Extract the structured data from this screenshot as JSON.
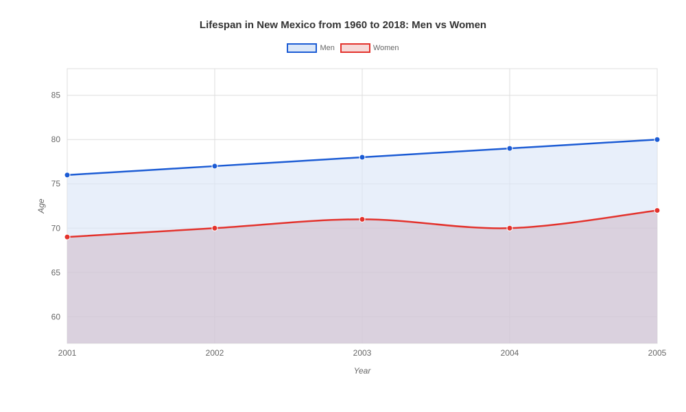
{
  "chart": {
    "type": "area-line",
    "title": "Lifespan in New Mexico from 1960 to 2018: Men vs Women",
    "title_fontsize": 15,
    "title_color": "#333333",
    "background_color": "#ffffff",
    "plot_background": "#ffffff",
    "grid_color": "#dddddd",
    "x": {
      "label": "Year",
      "categories": [
        "2001",
        "2002",
        "2003",
        "2004",
        "2005"
      ]
    },
    "y": {
      "label": "Age",
      "min": 57,
      "max": 88,
      "ticks": [
        60,
        65,
        70,
        75,
        80,
        85
      ]
    },
    "series": [
      {
        "name": "Men",
        "color": "#1b5bd4",
        "fill": "#dbe7f8",
        "fill_opacity": 0.65,
        "line_width": 2.5,
        "marker_radius": 4,
        "values": [
          76,
          77,
          78,
          79,
          80
        ]
      },
      {
        "name": "Women",
        "color": "#e3322c",
        "fill": "#cdb8c6",
        "fill_opacity": 0.55,
        "line_width": 2.5,
        "marker_radius": 4,
        "values": [
          69,
          70,
          71,
          70,
          72
        ]
      }
    ],
    "legend": {
      "items": [
        {
          "label": "Men",
          "border": "#1b5bd4",
          "fill": "#dbe7f8"
        },
        {
          "label": "Women",
          "border": "#e3322c",
          "fill": "#f6dad9"
        }
      ]
    }
  }
}
